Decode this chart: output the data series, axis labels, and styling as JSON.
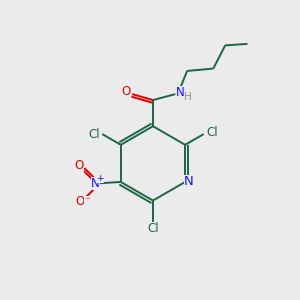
{
  "bg_color": "#ebebeb",
  "bond_color": "#1a6644",
  "colors": {
    "N": "#1414ff",
    "O": "#e00000",
    "Cl": "#1a6644",
    "H": "#909090"
  },
  "lw": 1.4,
  "fs": 8.5,
  "figsize": [
    3.0,
    3.0
  ],
  "dpi": 100
}
